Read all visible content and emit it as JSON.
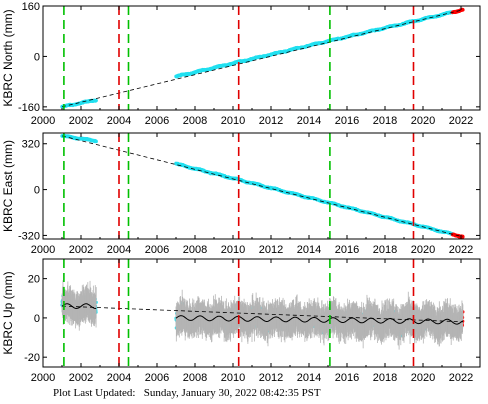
{
  "footer": {
    "label": "Plot Last Updated:",
    "timestamp": "Sunday, January 30, 2022 08:42:35 PST"
  },
  "colors": {
    "data": "#22e0f0",
    "error_bar": "#b4b4b4",
    "recent": "#ff0000",
    "model": "#000000",
    "green_line": "#00c000",
    "red_line": "#e00000"
  },
  "chart_data": [
    {
      "type": "scatter",
      "ylabel": "KBRC North (mm)",
      "xlim": [
        2000,
        2023
      ],
      "ylim": [
        -170,
        160
      ],
      "xticks": [
        2000,
        2002,
        2004,
        2006,
        2008,
        2010,
        2012,
        2014,
        2016,
        2018,
        2020,
        2022
      ],
      "yticks": [
        -160,
        0,
        160
      ],
      "series": [
        {
          "x": [
            2001.0,
            2002.8
          ],
          "y": [
            -160,
            -138
          ]
        },
        {
          "x": [
            2007.0,
            2022.1
          ],
          "y": [
            -64,
            148
          ]
        }
      ],
      "model_line": {
        "x": [
          2001.0,
          2022.1
        ],
        "y": [
          -160,
          148
        ]
      },
      "green_events": [
        2001.1,
        2004.5,
        2015.1
      ],
      "red_events": [
        2004.0,
        2010.3,
        2019.5
      ]
    },
    {
      "type": "scatter",
      "ylabel": "KBRC East (mm)",
      "xlim": [
        2000,
        2023
      ],
      "ylim": [
        -345,
        395
      ],
      "xticks": [
        2000,
        2002,
        2004,
        2006,
        2008,
        2010,
        2012,
        2014,
        2016,
        2018,
        2020,
        2022
      ],
      "yticks": [
        -320,
        0,
        320
      ],
      "series": [
        {
          "x": [
            2001.0,
            2002.8
          ],
          "y": [
            375,
            340
          ]
        },
        {
          "x": [
            2007.0,
            2022.1
          ],
          "y": [
            180,
            -330
          ]
        }
      ],
      "model_line": {
        "x": [
          2001.0,
          2022.1
        ],
        "y": [
          375,
          -330
        ]
      },
      "green_events": [
        2001.1,
        2004.5,
        2015.1
      ],
      "red_events": [
        2004.0,
        2010.3,
        2019.5
      ]
    },
    {
      "type": "scatter",
      "ylabel": "KBRC Up (mm)",
      "xlim": [
        2000,
        2023
      ],
      "ylim": [
        -25,
        30
      ],
      "xticks": [
        2000,
        2002,
        2004,
        2006,
        2008,
        2010,
        2012,
        2014,
        2016,
        2018,
        2020,
        2022
      ],
      "yticks": [
        -20,
        0,
        20
      ],
      "series": [
        {
          "x": [
            2001.0,
            2002.8
          ],
          "y": [
            6,
            6
          ]
        },
        {
          "x": [
            2007.0,
            2022.1
          ],
          "y": [
            0,
            -2
          ]
        }
      ],
      "model_line": {
        "x": [
          2001.0,
          2022.1
        ],
        "y": [
          6,
          -2
        ]
      },
      "green_events": [
        2001.1,
        2004.5,
        2015.1
      ],
      "red_events": [
        2004.0,
        2010.3,
        2019.5
      ]
    }
  ]
}
